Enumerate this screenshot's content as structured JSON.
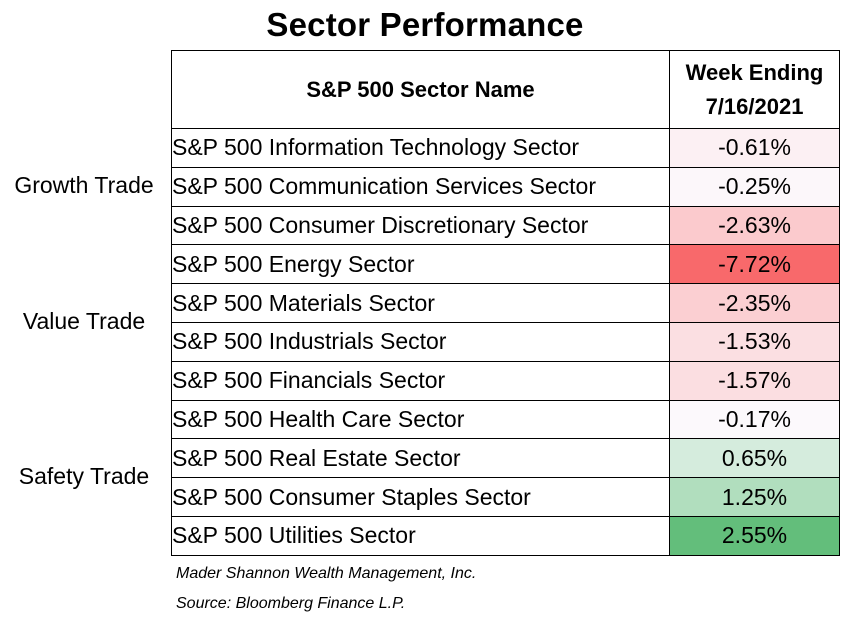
{
  "chart_data": {
    "type": "table",
    "title": "Sector Performance",
    "columns": [
      "S&P 500 Sector Name",
      "Week Ending 7/16/2021"
    ],
    "header_week_line1": "Week Ending",
    "header_week_line2": "7/16/2021",
    "groups": [
      {
        "label": "Growth Trade",
        "rows": [
          {
            "sector": "S&P 500 Information Technology Sector",
            "value": -0.61,
            "display": "-0.61%"
          },
          {
            "sector": "S&P 500 Communication Services Sector",
            "value": -0.25,
            "display": "-0.25%"
          },
          {
            "sector": "S&P 500 Consumer Discretionary Sector",
            "value": -2.63,
            "display": "-2.63%"
          }
        ]
      },
      {
        "label": "Value Trade",
        "rows": [
          {
            "sector": "S&P 500 Energy Sector",
            "value": -7.72,
            "display": "-7.72%"
          },
          {
            "sector": "S&P 500 Materials Sector",
            "value": -2.35,
            "display": "-2.35%"
          },
          {
            "sector": "S&P 500 Industrials Sector",
            "value": -1.53,
            "display": "-1.53%"
          },
          {
            "sector": "S&P 500 Financials Sector",
            "value": -1.57,
            "display": "-1.57%"
          }
        ]
      },
      {
        "label": "Safety Trade",
        "rows": [
          {
            "sector": "S&P 500 Health Care Sector",
            "value": -0.17,
            "display": "-0.17%"
          },
          {
            "sector": "S&P 500 Real Estate Sector",
            "value": 0.65,
            "display": "0.65%"
          },
          {
            "sector": "S&P 500 Consumer Staples Sector",
            "value": 1.25,
            "display": "1.25%"
          },
          {
            "sector": "S&P 500 Utilities Sector",
            "value": 2.55,
            "display": "2.55%"
          }
        ]
      }
    ],
    "colors": {
      "negative_max": "#f8696b",
      "positive_max": "#63be7b",
      "neutral": "#fcfcff"
    }
  },
  "footnotes": [
    "Mader Shannon Wealth Management, Inc.",
    "Source: Bloomberg Finance L.P."
  ]
}
